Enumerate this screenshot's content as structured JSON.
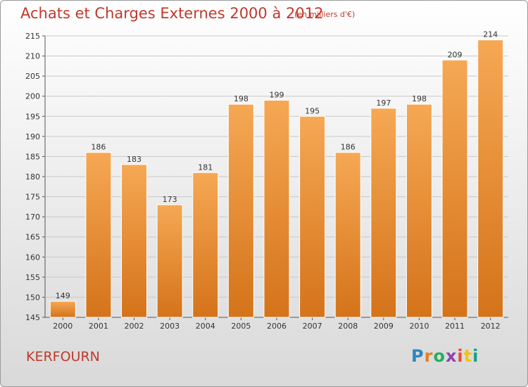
{
  "title": "Achats et Charges Externes 2000 à 2012",
  "subtitle": "(en milliers d'€)",
  "place": "KERFOURN",
  "logo": {
    "text": "Proxiti",
    "letter_colors": [
      "#2e86c1",
      "#e67e22",
      "#27ae60",
      "#8e44ad",
      "#e74c3c",
      "#f1c40f",
      "#16a085"
    ]
  },
  "colors": {
    "bar_top": "#f6a854",
    "bar_bottom": "#d4731a",
    "title": "#c0392b"
  },
  "chart_data": {
    "type": "bar",
    "title": "Achats et Charges Externes 2000 à 2012",
    "categories": [
      "2000",
      "2001",
      "2002",
      "2003",
      "2004",
      "2005",
      "2006",
      "2007",
      "2008",
      "2009",
      "2010",
      "2011",
      "2012"
    ],
    "values": [
      149,
      186,
      183,
      173,
      181,
      198,
      199,
      195,
      186,
      197,
      198,
      209,
      214
    ],
    "xlabel": "",
    "ylabel": "",
    "ylim": [
      145,
      215
    ],
    "yticks": [
      145,
      150,
      155,
      160,
      165,
      170,
      175,
      180,
      185,
      190,
      195,
      200,
      205,
      210,
      215
    ],
    "grid": true
  }
}
